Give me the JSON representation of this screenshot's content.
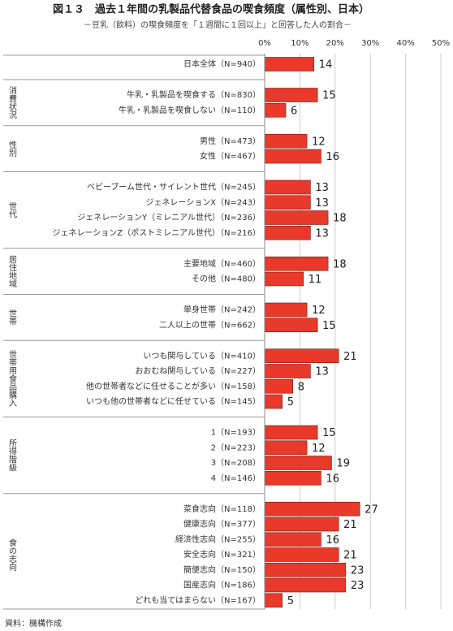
{
  "chart_data": {
    "type": "bar",
    "orientation": "horizontal",
    "title": "図１３　過去１年間の乳製品代替食品の喫食頻度（属性別、日本）",
    "subtitle": "－豆乳（飲料）の喫食頻度を「１週間に１回以上」と回答した人の割合－",
    "color": "#e8392a",
    "xlim": [
      0,
      50
    ],
    "xticks": [
      {
        "value": 0,
        "label": "0%"
      },
      {
        "value": 10,
        "label": "10%"
      },
      {
        "value": 20,
        "label": "20%"
      },
      {
        "value": 30,
        "label": "30%"
      },
      {
        "value": 40,
        "label": "40%"
      },
      {
        "value": 50,
        "label": "50%"
      }
    ],
    "grid": true,
    "groups": [
      {
        "name": null,
        "categories": [
          "日本全体（N=940）"
        ],
        "values": [
          14
        ]
      },
      {
        "name": "消費状況",
        "categories": [
          "牛乳・乳製品を喫食する（N=830）",
          "牛乳・乳製品を喫食しない（N=110）"
        ],
        "values": [
          15,
          6
        ]
      },
      {
        "name": "性別",
        "categories": [
          "男性（N=473）",
          "女性（N=467）"
        ],
        "values": [
          12,
          16
        ]
      },
      {
        "name": "世代",
        "categories": [
          "ベビーブーム世代・サイレント世代（N=245）",
          "ジェネレーションX（N=243）",
          "ジェネレーションY（ミレニアル世代）（N=236）",
          "ジェネレーションZ（ポストミレニアル世代）（N=216）"
        ],
        "values": [
          13,
          13,
          18,
          13
        ]
      },
      {
        "name": "居住地域",
        "categories": [
          "主要地域（N=460）",
          "その他（N=480）"
        ],
        "values": [
          18,
          11
        ]
      },
      {
        "name": "世帯",
        "categories": [
          "単身世帯（N=242）",
          "二人以上の世帯（N=662）"
        ],
        "values": [
          12,
          15
        ]
      },
      {
        "name": "世帯用食品購入",
        "categories": [
          "いつも関与している（N=410）",
          "おおむね関与している（N=227）",
          "他の世帯者などに任せることが多い（N=158）",
          "いつも他の世帯者などに任せている（N=145）"
        ],
        "values": [
          21,
          13,
          8,
          5
        ]
      },
      {
        "name": "所得階級",
        "categories": [
          "1（N=193）",
          "2（N=223）",
          "3（N=208）",
          "4（N=146）"
        ],
        "values": [
          15,
          12,
          19,
          16
        ]
      },
      {
        "name": "食の志向",
        "categories": [
          "菜食志向（N=118）",
          "健康志向（N=377）",
          "経済性志向（N=255）",
          "安全志向（N=321）",
          "簡便志向（N=150）",
          "国産志向（N=186）",
          "どれも当てはまらない（N=167）"
        ],
        "values": [
          27,
          21,
          16,
          21,
          23,
          23,
          5
        ]
      }
    ],
    "source": "資料：機構作成"
  }
}
